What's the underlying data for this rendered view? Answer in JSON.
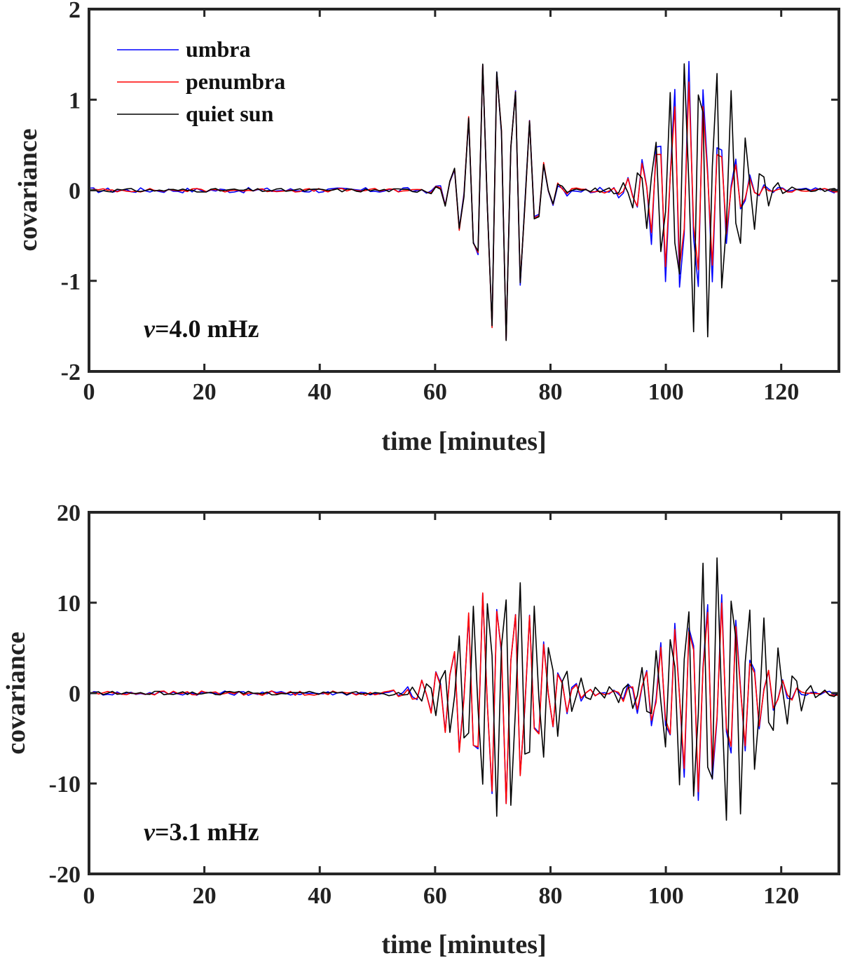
{
  "colors": {
    "umbra": "#0000ff",
    "penumbra": "#ff0000",
    "quiet_sun": "#000000",
    "axis": "#262626"
  },
  "chart_data": [
    {
      "type": "line",
      "xlabel": "time [minutes]",
      "ylabel": "covariance",
      "xlim": [
        0,
        130
      ],
      "ylim": [
        -2,
        2
      ],
      "xticks": [
        "0",
        "20",
        "40",
        "60",
        "80",
        "100",
        "120"
      ],
      "yticks": [
        "-2",
        "-1",
        "0",
        "1",
        "2"
      ],
      "annotation": {
        "symbol": "ν",
        "text": "=4.0 mHz"
      },
      "legend": {
        "position": "top-left",
        "entries": [
          "umbra",
          "penumbra",
          "quiet sun"
        ]
      },
      "series": [
        {
          "name": "umbra",
          "model": {
            "packets": [
              [
                71,
                1.75,
                6.0,
                1.03
              ],
              [
                104,
                1.45,
                7.0,
                1.28
              ]
            ],
            "noise": 0.03
          }
        },
        {
          "name": "penumbra",
          "model": {
            "packets": [
              [
                71,
                1.75,
                6.0,
                1.18
              ],
              [
                104,
                1.2,
                7.0,
                0.68
              ]
            ],
            "noise": 0.02
          }
        },
        {
          "name": "quiet sun",
          "model": {
            "packets": [
              [
                71,
                1.75,
                6.0,
                1.03
              ],
              [
                106,
                1.7,
                8.0,
                1.28
              ]
            ],
            "noise": 0.02
          }
        }
      ]
    },
    {
      "type": "line",
      "xlabel": "time [minutes]",
      "ylabel": "covariance",
      "xlim": [
        0,
        130
      ],
      "ylim": [
        -20,
        20
      ],
      "xticks": [
        "0",
        "20",
        "40",
        "60",
        "80",
        "100",
        "120"
      ],
      "yticks": [
        "-20",
        "-10",
        "0",
        "10",
        "20"
      ],
      "annotation": {
        "symbol": "ν",
        "text": "=3.1 mHz"
      },
      "series": [
        {
          "name": "umbra",
          "model": {
            "packets": [
              [
                71,
                12.5,
                9.0,
                0.48
              ],
              [
                107,
                12.0,
                9.0,
                1.07
              ]
            ],
            "noise": 0.25
          }
        },
        {
          "name": "penumbra",
          "model": {
            "packets": [
              [
                71,
                12.5,
                9.0,
                0.48
              ],
              [
                107,
                11.0,
                9.0,
                1.03
              ]
            ],
            "noise": 0.25
          }
        },
        {
          "name": "quiet sun",
          "model": {
            "packets": [
              [
                72,
                14.0,
                9.0,
                0.48
              ],
              [
                109,
                15.5,
                10.0,
                1.2
              ]
            ],
            "noise": 0.2
          }
        }
      ]
    }
  ]
}
